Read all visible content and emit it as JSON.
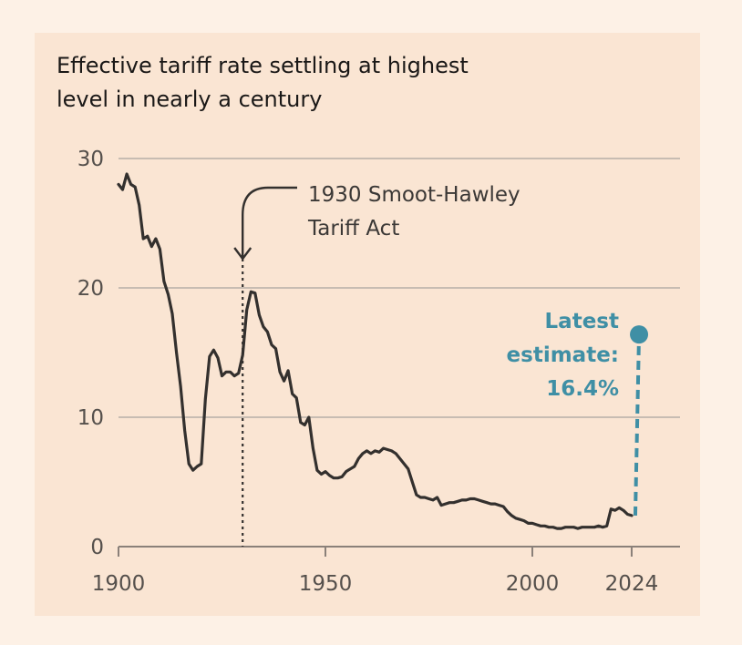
{
  "chart_data": {
    "type": "line",
    "title": "Effective tariff rate settling at highest level in nearly a century",
    "xlabel": "",
    "ylabel": "",
    "xlim": [
      1900,
      2028
    ],
    "ylim": [
      0,
      30
    ],
    "x_ticks": [
      1900,
      1950,
      2000,
      2024
    ],
    "x_tick_labels": [
      "1900",
      "1950",
      "2000",
      "2024"
    ],
    "y_ticks": [
      0,
      10,
      20,
      30
    ],
    "y_tick_labels": [
      "0",
      "10",
      "20",
      "30"
    ],
    "grid": "horizontal",
    "series": [
      {
        "x": [
          1900,
          1901,
          1902,
          1903,
          1904,
          1905,
          1906,
          1907,
          1908,
          1909,
          1910,
          1911,
          1912,
          1913,
          1914,
          1915,
          1916,
          1917,
          1918,
          1919,
          1920,
          1921,
          1922,
          1923,
          1924,
          1925,
          1926,
          1927,
          1928,
          1929,
          1930,
          1931,
          1932,
          1933,
          1934,
          1935,
          1936,
          1937,
          1938,
          1939,
          1940,
          1941,
          1942,
          1943,
          1944,
          1945,
          1946,
          1947,
          1948,
          1949,
          1950,
          1951,
          1952,
          1953,
          1954,
          1955,
          1956,
          1957,
          1958,
          1959,
          1960,
          1961,
          1962,
          1963,
          1964,
          1965,
          1966,
          1967,
          1968,
          1969,
          1970,
          1971,
          1972,
          1973,
          1974,
          1975,
          1976,
          1977,
          1978,
          1979,
          1980,
          1981,
          1982,
          1983,
          1984,
          1985,
          1986,
          1987,
          1988,
          1989,
          1990,
          1991,
          1992,
          1993,
          1994,
          1995,
          1996,
          1997,
          1998,
          1999,
          2000,
          2001,
          2002,
          2003,
          2004,
          2005,
          2006,
          2007,
          2008,
          2009,
          2010,
          2011,
          2012,
          2013,
          2014,
          2015,
          2016,
          2017,
          2018,
          2019,
          2020,
          2021,
          2022,
          2023,
          2024
        ],
        "values": [
          28.0,
          27.6,
          28.8,
          28.0,
          27.8,
          26.4,
          23.8,
          24.0,
          23.2,
          23.8,
          23.0,
          20.5,
          19.5,
          18.0,
          15.0,
          12.4,
          9.0,
          6.4,
          5.9,
          6.2,
          6.4,
          11.4,
          14.7,
          15.2,
          14.6,
          13.2,
          13.5,
          13.5,
          13.2,
          13.4,
          14.8,
          18.3,
          19.7,
          19.6,
          17.9,
          17.0,
          16.6,
          15.6,
          15.3,
          13.5,
          12.8,
          13.6,
          11.8,
          11.5,
          9.6,
          9.4,
          10.0,
          7.6,
          5.9,
          5.6,
          5.8,
          5.5,
          5.3,
          5.3,
          5.4,
          5.8,
          6.0,
          6.2,
          6.8,
          7.2,
          7.4,
          7.2,
          7.4,
          7.3,
          7.6,
          7.5,
          7.4,
          7.2,
          6.8,
          6.4,
          6.0,
          5.0,
          4.0,
          3.8,
          3.8,
          3.7,
          3.6,
          3.8,
          3.2,
          3.3,
          3.4,
          3.4,
          3.5,
          3.6,
          3.6,
          3.7,
          3.7,
          3.6,
          3.5,
          3.4,
          3.3,
          3.3,
          3.2,
          3.1,
          2.7,
          2.4,
          2.2,
          2.1,
          2.0,
          1.8,
          1.8,
          1.7,
          1.6,
          1.6,
          1.5,
          1.5,
          1.4,
          1.4,
          1.5,
          1.5,
          1.5,
          1.4,
          1.5,
          1.5,
          1.5,
          1.5,
          1.6,
          1.5,
          1.6,
          2.9,
          2.8,
          3.0,
          2.8,
          2.5,
          2.4
        ]
      }
    ],
    "annotations": [
      {
        "x": 1930,
        "lines": [
          "1930 Smoot-Hawley",
          "Tariff Act"
        ],
        "style": "dotted vertical line with arrow"
      },
      {
        "x": 2026,
        "y": 16.4,
        "lines": [
          "Latest",
          "estimate:",
          "16.4%"
        ],
        "style": "dashed teal line to dot",
        "color": "#3f8fa5"
      }
    ],
    "colors": {
      "line": "#33302e",
      "highlight": "#3f8fa5",
      "grid": "#c7bcb2",
      "background": "#fae5d3"
    }
  }
}
